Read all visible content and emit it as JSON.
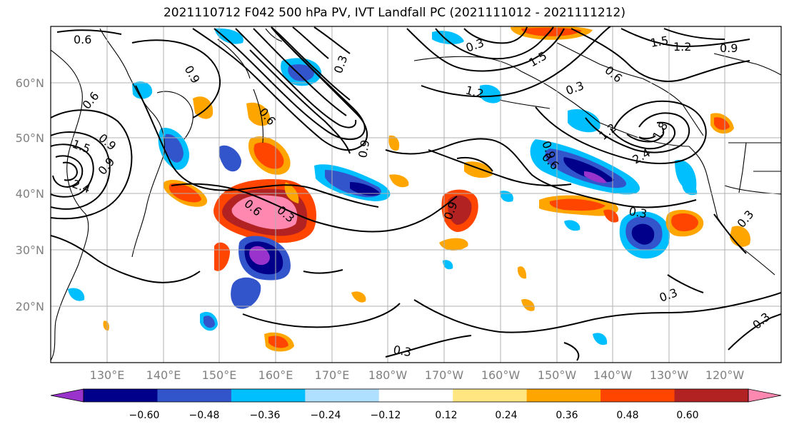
{
  "title": "2021110712 F042 500 hPa PV, IVT Landfall PC (2021111012 - 2021111212)",
  "map": {
    "lat_labels": [
      "60°N",
      "50°N",
      "40°N",
      "30°N",
      "20°N"
    ],
    "lon_labels": [
      "130°E",
      "140°E",
      "150°E",
      "160°E",
      "170°E",
      "180°W",
      "170°W",
      "160°W",
      "150°W",
      "140°W",
      "130°W",
      "120°W"
    ],
    "contour_labels": [
      "0.6",
      "0.3",
      "0.9",
      "0.3",
      "1.5",
      "1.2",
      "0.9",
      "1.5",
      "0.6",
      "0.3",
      "1.2",
      "0.6",
      "0.9",
      "0.6",
      "0.9",
      "1.5",
      "0.9",
      "0.6",
      "0.3",
      "0.6",
      "0.9",
      "0.3",
      "1.2",
      "2.4",
      "1.8",
      "0.3",
      "0.3",
      "0.3",
      "0.3",
      "2.4",
      "0.9"
    ],
    "colors": {
      "land": "#000000",
      "grid": "#b0b0b0",
      "contour": "#000000"
    }
  },
  "colorbar": {
    "ticks": [
      "−0.60",
      "−0.48",
      "−0.36",
      "−0.24",
      "−0.12",
      "0.12",
      "0.24",
      "0.36",
      "0.48",
      "0.60"
    ],
    "colors": [
      "#9933cc",
      "#00008b",
      "#3355cc",
      "#00bfff",
      "#b0e0ff",
      "#ffffff",
      "#ffe680",
      "#ffa500",
      "#ff4500",
      "#b22222",
      "#ff88b0"
    ]
  }
}
